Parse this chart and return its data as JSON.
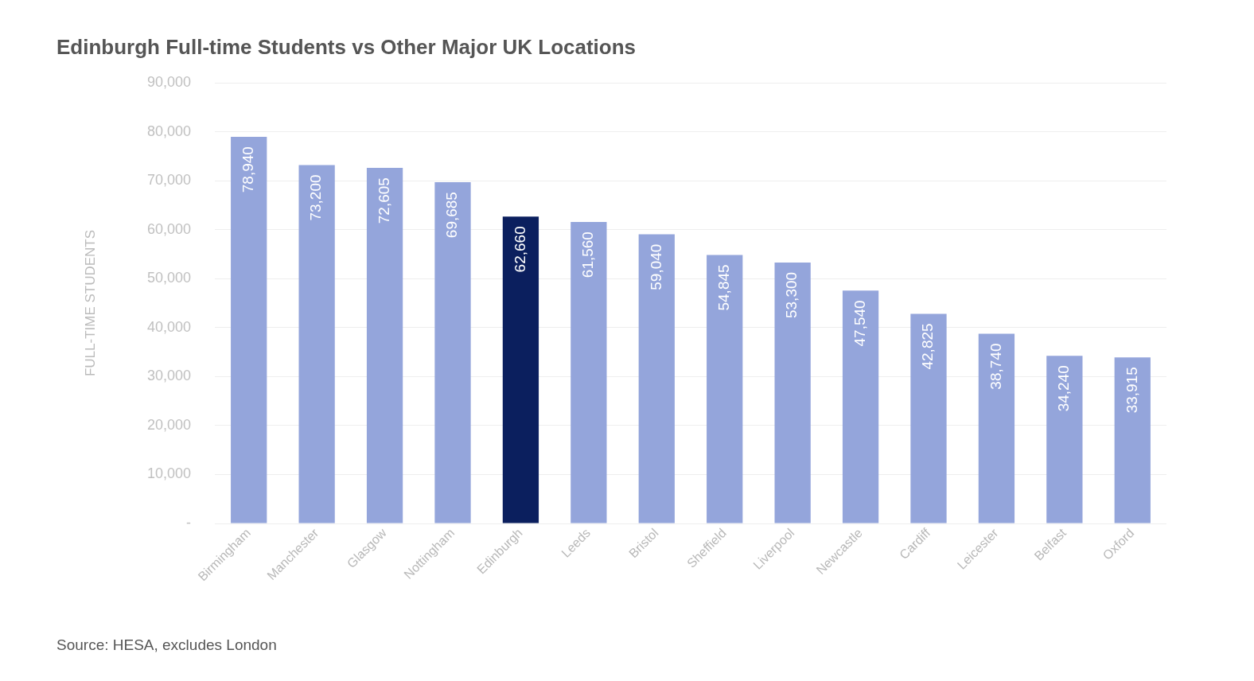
{
  "chart_data": {
    "type": "bar",
    "title": "Edinburgh Full-time Students vs Other Major UK Locations",
    "ylabel": "FULL-TIME STUDENTS",
    "categories": [
      "Birmingham",
      "Manchester",
      "Glasgow",
      "Nottingham",
      "Edinburgh",
      "Leeds",
      "Bristol",
      "Sheffield",
      "Liverpool",
      "Newcastle",
      "Cardiff",
      "Leicester",
      "Belfast",
      "Oxford"
    ],
    "values": [
      78940,
      73200,
      72605,
      69685,
      62660,
      61560,
      59040,
      54845,
      53300,
      47540,
      42825,
      38740,
      34240,
      33915
    ],
    "colors": [
      "#94a5db",
      "#94a5db",
      "#94a5db",
      "#94a5db",
      "#0b1f5e",
      "#94a5db",
      "#94a5db",
      "#94a5db",
      "#94a5db",
      "#94a5db",
      "#94a5db",
      "#94a5db",
      "#94a5db",
      "#94a5db"
    ],
    "ylim": [
      0,
      90000
    ],
    "yticks": [
      {
        "value": 0,
        "label": "-"
      },
      {
        "value": 10000,
        "label": "10,000"
      },
      {
        "value": 20000,
        "label": "20,000"
      },
      {
        "value": 30000,
        "label": "30,000"
      },
      {
        "value": 40000,
        "label": "40,000"
      },
      {
        "value": 50000,
        "label": "50,000"
      },
      {
        "value": 60000,
        "label": "60,000"
      },
      {
        "value": 70000,
        "label": "70,000"
      },
      {
        "value": 80000,
        "label": "80,000"
      },
      {
        "value": 90000,
        "label": "90,000"
      }
    ],
    "grid": "y",
    "value_labels": [
      "78,940",
      "73,200",
      "72,605",
      "69,685",
      "62,660",
      "61,560",
      "59,040",
      "54,845",
      "53,300",
      "47,540",
      "42,825",
      "38,740",
      "34,240",
      "33,915"
    ],
    "annotations": [
      "Source: HESA, excludes London"
    ]
  }
}
